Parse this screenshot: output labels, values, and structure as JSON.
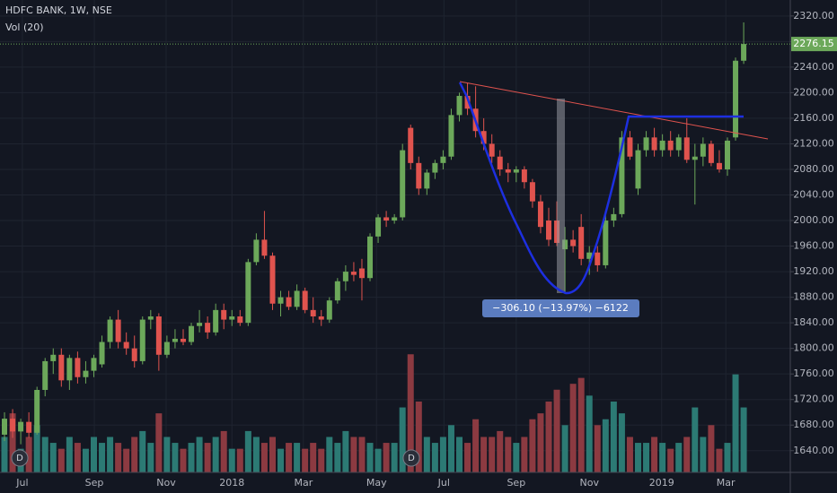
{
  "chart_data": {
    "type": "candlestick",
    "title": "HDFC BANK, 1W, NSE",
    "volume_label": "Vol (20)",
    "open": [
      1665,
      1690,
      1670,
      1685,
      1668,
      1735,
      1780,
      1790,
      1750,
      1785,
      1755,
      1765,
      1775,
      1810,
      1845,
      1810,
      1800,
      1780,
      1845,
      1850,
      1790,
      1810,
      1815,
      1810,
      1835,
      1840,
      1825,
      1860,
      1845,
      1850,
      1840,
      1935,
      1970,
      1945,
      1870,
      1880,
      1865,
      1890,
      1860,
      1850,
      1845,
      1875,
      1905,
      1920,
      1925,
      1910,
      1975,
      2005,
      2000,
      2005,
      2145,
      2090,
      2050,
      2075,
      2090,
      2100,
      2165,
      2195,
      2175,
      2140,
      2120,
      2100,
      2080,
      2075,
      2080,
      2060,
      2030,
      2000,
      2000,
      1955,
      1970,
      1990,
      1940,
      1950,
      1930,
      2000,
      2010,
      2130,
      2050,
      2110,
      2130,
      2110,
      2125,
      2110,
      2130,
      2095,
      2100,
      2120,
      2090,
      2080,
      2130,
      2250
    ],
    "high": [
      1700,
      1705,
      1690,
      1700,
      1740,
      1785,
      1800,
      1800,
      1790,
      1795,
      1780,
      1790,
      1820,
      1850,
      1860,
      1825,
      1820,
      1850,
      1860,
      1855,
      1820,
      1830,
      1830,
      1840,
      1860,
      1850,
      1870,
      1870,
      1860,
      1860,
      1940,
      1980,
      2015,
      1950,
      1890,
      1890,
      1900,
      1895,
      1880,
      1860,
      1880,
      1910,
      1930,
      1935,
      1940,
      1980,
      2010,
      2015,
      2010,
      2120,
      2150,
      2100,
      2080,
      2095,
      2110,
      2175,
      2200,
      2215,
      2210,
      2160,
      2135,
      2110,
      2090,
      2085,
      2085,
      2065,
      2040,
      2020,
      2030,
      1990,
      1985,
      2010,
      1960,
      1960,
      2010,
      2020,
      2140,
      2140,
      2120,
      2140,
      2145,
      2135,
      2140,
      2135,
      2160,
      2120,
      2130,
      2125,
      2110,
      2130,
      2255,
      2310
    ],
    "low": [
      1655,
      1660,
      1650,
      1660,
      1665,
      1725,
      1760,
      1740,
      1735,
      1745,
      1745,
      1755,
      1770,
      1800,
      1800,
      1790,
      1770,
      1775,
      1830,
      1765,
      1785,
      1800,
      1805,
      1805,
      1825,
      1815,
      1820,
      1830,
      1835,
      1835,
      1835,
      1930,
      1940,
      1860,
      1850,
      1860,
      1860,
      1855,
      1840,
      1835,
      1840,
      1870,
      1890,
      1905,
      1875,
      1905,
      1965,
      1990,
      1995,
      2000,
      2080,
      2040,
      2040,
      2065,
      2080,
      2095,
      2155,
      2165,
      2130,
      2110,
      2090,
      2070,
      2060,
      2060,
      2050,
      2020,
      1980,
      1960,
      1960,
      1885,
      1950,
      1930,
      1915,
      1920,
      1925,
      1990,
      2005,
      2095,
      2040,
      2100,
      2100,
      2100,
      2100,
      2100,
      2090,
      2025,
      2085,
      2085,
      2075,
      2070,
      2125,
      2245
    ],
    "close": [
      1690,
      1670,
      1685,
      1668,
      1735,
      1780,
      1790,
      1750,
      1785,
      1755,
      1765,
      1785,
      1810,
      1845,
      1810,
      1800,
      1780,
      1845,
      1850,
      1790,
      1810,
      1815,
      1810,
      1835,
      1840,
      1825,
      1860,
      1845,
      1850,
      1840,
      1935,
      1970,
      1945,
      1870,
      1880,
      1865,
      1890,
      1860,
      1850,
      1845,
      1875,
      1905,
      1920,
      1915,
      1910,
      1975,
      2005,
      2000,
      2005,
      2110,
      2090,
      2050,
      2075,
      2090,
      2100,
      2165,
      2195,
      2175,
      2140,
      2120,
      2100,
      2080,
      2075,
      2080,
      2060,
      2030,
      1990,
      1970,
      1965,
      1970,
      1960,
      1940,
      1950,
      1930,
      2000,
      2010,
      2130,
      2100,
      2110,
      2130,
      2110,
      2125,
      2110,
      2130,
      2095,
      2100,
      2120,
      2090,
      2080,
      2125,
      2250,
      2276.15
    ],
    "volume": [
      3,
      5,
      2,
      3,
      4,
      3,
      2.5,
      2,
      3,
      2.5,
      2,
      3,
      2.5,
      3,
      2.5,
      2,
      3,
      3.5,
      2.5,
      5,
      3,
      2.5,
      2,
      2.5,
      3,
      2.5,
      3,
      3.5,
      2,
      2,
      3.5,
      3,
      2.5,
      3,
      2,
      2.5,
      2.5,
      2,
      2.5,
      2,
      3,
      2.5,
      3.5,
      3,
      3,
      2.5,
      2,
      2.5,
      2.5,
      5.5,
      10,
      6,
      3,
      2.5,
      3,
      4,
      3,
      2.5,
      4.5,
      3,
      3,
      3.5,
      3,
      2.5,
      3,
      4.5,
      5,
      6,
      7,
      4,
      7.5,
      8,
      6.5,
      4,
      4.5,
      6,
      5,
      3,
      2.5,
      2.5,
      3,
      2.5,
      2,
      2.5,
      3,
      5.5,
      3,
      4,
      2,
      2.5,
      8.3,
      5.5
    ],
    "vol_ylim": [
      0,
      40
    ],
    "up_color": "#6ca85a",
    "down_color": "#e0534e",
    "vol_up_color": "#2c7a74",
    "vol_down_color": "#8c3a41",
    "last_price": 2276.15,
    "xlim": [
      -0.553,
      96.74
    ],
    "xticks": [
      {
        "value": 2.2,
        "label": "Jul"
      },
      {
        "value": 11.06,
        "label": "Sep"
      },
      {
        "value": 19.9,
        "label": "Nov"
      },
      {
        "value": 28.0,
        "label": "2018"
      },
      {
        "value": 36.8,
        "label": "Mar"
      },
      {
        "value": 45.8,
        "label": "May"
      },
      {
        "value": 54.1,
        "label": "Jul"
      },
      {
        "value": 63.0,
        "label": "Sep"
      },
      {
        "value": 72.0,
        "label": "Nov"
      },
      {
        "value": 80.9,
        "label": "2019"
      },
      {
        "value": 88.8,
        "label": "Mar"
      }
    ],
    "ylim": [
      1606,
      2345
    ],
    "yticks": [
      {
        "value": 1640,
        "label": "1640.00"
      },
      {
        "value": 1680,
        "label": "1680.00"
      },
      {
        "value": 1720,
        "label": "1720.00"
      },
      {
        "value": 1760,
        "label": "1760.00"
      },
      {
        "value": 1800,
        "label": "1800.00"
      },
      {
        "value": 1840,
        "label": "1840.00"
      },
      {
        "value": 1880,
        "label": "1880.00"
      },
      {
        "value": 1920,
        "label": "1920.00"
      },
      {
        "value": 1960,
        "label": "1960.00"
      },
      {
        "value": 2000,
        "label": "2000.00"
      },
      {
        "value": 2040,
        "label": "2040.00"
      },
      {
        "value": 2080,
        "label": "2080.00"
      },
      {
        "value": 2120,
        "label": "2120.00"
      },
      {
        "value": 2160,
        "label": "2160.00"
      },
      {
        "value": 2200,
        "label": "2200.00"
      },
      {
        "value": 2240,
        "label": "2240.00"
      },
      {
        "value": 2280,
        "label": "2280.00"
      },
      {
        "value": 2320,
        "label": "2320.00"
      }
    ],
    "grid": true,
    "measure_label": "−306.10 (−13.97%) −6122",
    "markers": [
      "D",
      "D"
    ]
  }
}
